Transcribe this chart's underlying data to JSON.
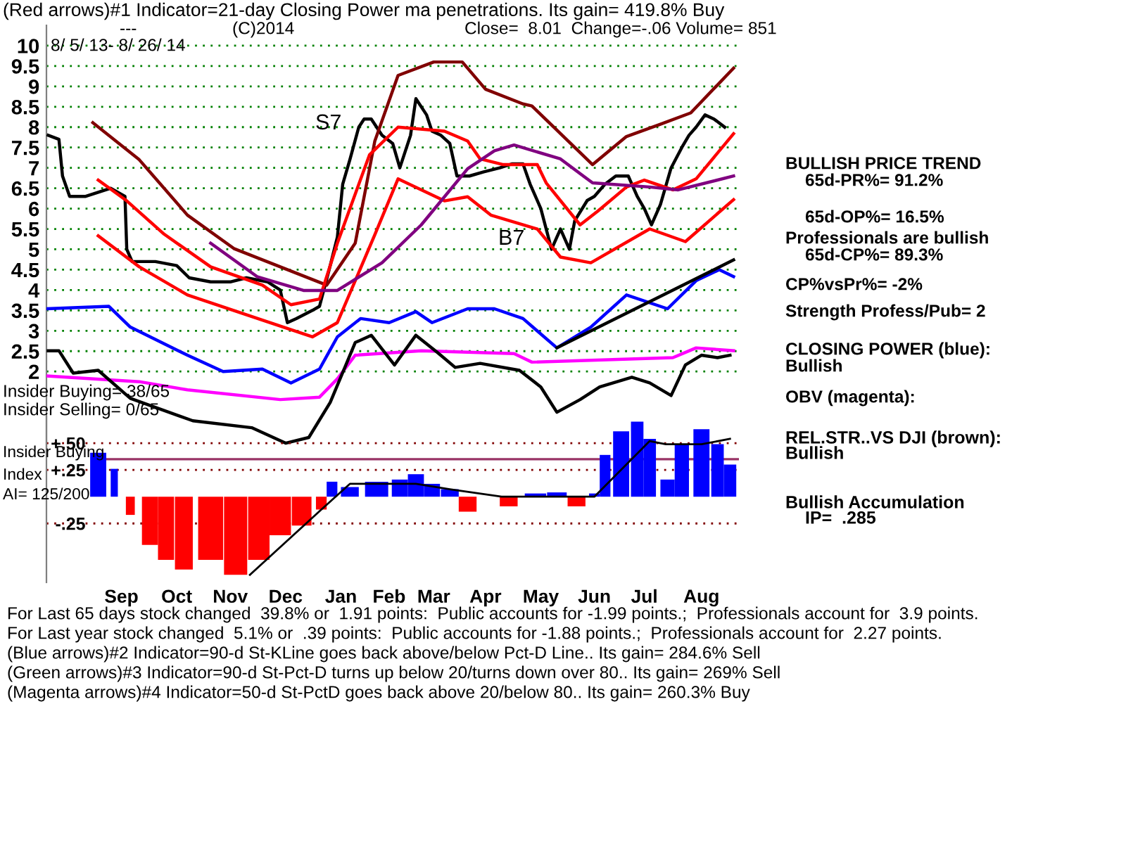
{
  "chart_data": [
    {
      "type": "line",
      "title": "(Red arrows)#1 Indicator=21-day Closing Power ma penetrations. Its gain= 419.8% Buy",
      "xlim": [
        "2013-08-05",
        "2014-08-28"
      ],
      "ylim": [
        0,
        10.5
      ],
      "yticks": [
        2,
        2.5,
        3,
        3.5,
        4,
        4.5,
        5,
        5.5,
        6,
        6.5,
        7,
        7.5,
        8,
        8.5,
        9,
        9.5,
        10
      ],
      "grid": "y",
      "tick_labels": "y",
      "series": [
        {
          "color": "#000000",
          "x": [
            "2013-08-06",
            "2013-08-12",
            "2013-08-14",
            "2013-08-18",
            "2013-08-27",
            "2013-09-03",
            "2013-09-10",
            "2013-09-18",
            "2013-09-19",
            "2013-09-22",
            "2013-10-05",
            "2013-10-17",
            "2013-10-24",
            "2013-11-05",
            "2013-11-16",
            "2013-11-25",
            "2013-12-07",
            "2013-12-14",
            "2013-12-18",
            "2013-12-23",
            "2014-01-01",
            "2014-01-05",
            "2014-01-11",
            "2014-01-15",
            "2014-01-18",
            "2014-01-22",
            "2014-01-27",
            "2014-01-30",
            "2014-02-03",
            "2014-02-09",
            "2014-02-15",
            "2014-02-19",
            "2014-02-25",
            "2014-02-28",
            "2014-03-06",
            "2014-03-09",
            "2014-03-14",
            "2014-03-19",
            "2014-03-23",
            "2014-03-30",
            "2014-04-07",
            "2014-04-16",
            "2014-04-23",
            "2014-04-29",
            "2014-05-03",
            "2014-05-09",
            "2014-05-15",
            "2014-05-20",
            "2014-05-25",
            "2014-05-28",
            "2014-06-04",
            "2014-06-08",
            "2014-06-14",
            "2014-06-20",
            "2014-06-27",
            "2014-07-02",
            "2014-07-06",
            "2014-07-10",
            "2014-07-15",
            "2014-07-21",
            "2014-07-27",
            "2014-07-31",
            "2014-08-04",
            "2014-08-09",
            "2014-08-14",
            "2014-08-20"
          ],
          "values": [
            7.8,
            7.7,
            6.8,
            6.3,
            6.3,
            6.4,
            6.5,
            6.3,
            5.0,
            4.7,
            4.7,
            4.6,
            4.3,
            4.2,
            4.2,
            4.3,
            4.2,
            4.0,
            3.2,
            3.3,
            3.5,
            3.6,
            4.6,
            5.3,
            6.6,
            7.2,
            8.0,
            8.2,
            8.2,
            7.8,
            7.6,
            7.0,
            7.8,
            8.7,
            8.3,
            7.9,
            7.8,
            7.6,
            6.8,
            6.8,
            6.9,
            7.0,
            7.1,
            7.1,
            6.6,
            6.0,
            5.0,
            5.5,
            5.0,
            5.7,
            6.2,
            6.3,
            6.6,
            6.8,
            6.8,
            6.3,
            6.0,
            5.6,
            6.1,
            7.0,
            7.5,
            7.8,
            8.0,
            8.3,
            8.2,
            8.0
          ]
        },
        {
          "color": "#800000",
          "x": [
            "2013-08-31",
            "2013-09-26",
            "2013-10-23",
            "2013-11-18",
            "2013-12-14",
            "2014-01-09",
            "2014-01-25",
            "2014-02-05",
            "2014-02-18",
            "2014-03-10",
            "2014-03-26",
            "2014-04-08",
            "2014-04-29",
            "2014-05-04",
            "2014-06-07",
            "2014-06-26",
            "2014-07-15",
            "2014-08-01",
            "2014-08-25"
          ],
          "values": [
            8.11,
            7.2,
            5.84,
            5.02,
            4.57,
            4.12,
            5.15,
            7.66,
            9.27,
            9.6,
            9.6,
            8.93,
            8.57,
            8.52,
            7.08,
            7.77,
            8.07,
            8.35,
            9.45
          ]
        },
        {
          "color": "#ff0000",
          "x": [
            "2013-09-03",
            "2013-09-19",
            "2013-10-10",
            "2013-11-05",
            "2013-12-04",
            "2013-12-20",
            "2014-01-05",
            "2014-01-15",
            "2014-02-02",
            "2014-02-18",
            "2014-03-16",
            "2014-03-29",
            "2014-04-05",
            "2014-04-18",
            "2014-05-07",
            "2014-05-12",
            "2014-05-31",
            "2014-06-10",
            "2014-06-26",
            "2014-07-06",
            "2014-07-22",
            "2014-08-04",
            "2014-08-25"
          ],
          "values": [
            6.7,
            6.19,
            5.37,
            4.57,
            4.12,
            3.64,
            3.78,
            5.15,
            7.32,
            8.0,
            7.9,
            7.66,
            7.22,
            7.08,
            7.08,
            6.63,
            5.6,
            5.94,
            6.53,
            6.7,
            6.46,
            6.73,
            7.84
          ]
        },
        {
          "color": "#ff0000",
          "x": [
            "2013-09-03",
            "2013-09-26",
            "2013-10-23",
            "2013-12-04",
            "2014-01-01",
            "2014-01-15",
            "2014-02-05",
            "2014-02-18",
            "2014-03-16",
            "2014-03-29",
            "2014-04-11",
            "2014-05-07",
            "2014-05-20",
            "2014-06-06",
            "2014-07-09",
            "2014-07-29",
            "2014-08-25"
          ],
          "values": [
            5.33,
            4.57,
            3.88,
            3.26,
            2.85,
            3.2,
            5.36,
            6.73,
            6.19,
            6.29,
            5.84,
            5.5,
            4.81,
            4.67,
            5.5,
            5.19,
            6.22
          ]
        },
        {
          "color": "#800080",
          "x": [
            "2013-11-05",
            "2013-12-01",
            "2013-12-27",
            "2014-01-15",
            "2014-02-09",
            "2014-03-03",
            "2014-03-29",
            "2014-04-13",
            "2014-04-24",
            "2014-05-20",
            "2014-06-07",
            "2014-07-09",
            "2014-07-25",
            "2014-08-25"
          ],
          "values": [
            5.15,
            4.33,
            3.99,
            3.99,
            4.67,
            5.6,
            6.98,
            7.42,
            7.56,
            7.22,
            6.63,
            6.53,
            6.46,
            6.8
          ]
        },
        {
          "color": "#0000ff",
          "x": [
            "2013-08-05",
            "2013-09-09",
            "2013-09-21",
            "2013-10-23",
            "2013-11-12",
            "2013-12-04",
            "2013-12-20",
            "2014-01-05",
            "2014-01-15",
            "2014-01-28",
            "2014-02-13",
            "2014-02-28",
            "2014-03-09",
            "2014-03-29",
            "2014-04-13",
            "2014-04-29",
            "2014-05-18",
            "2014-06-06",
            "2014-06-26",
            "2014-07-19",
            "2014-08-04",
            "2014-08-17",
            "2014-08-25"
          ],
          "values": [
            3.54,
            3.6,
            3.09,
            2.4,
            2.0,
            2.06,
            1.72,
            2.06,
            2.85,
            3.3,
            3.2,
            3.47,
            3.2,
            3.54,
            3.54,
            3.3,
            2.58,
            3.09,
            3.88,
            3.54,
            4.23,
            4.5,
            4.33
          ]
        },
        {
          "color": "#ff00ff",
          "x": [
            "2013-08-05",
            "2013-09-26",
            "2013-10-23",
            "2013-12-14",
            "2014-01-05",
            "2014-01-15",
            "2014-01-25",
            "2014-03-03",
            "2014-04-24",
            "2014-05-04",
            "2014-07-22",
            "2014-08-04",
            "2014-08-25"
          ],
          "values": [
            1.89,
            1.75,
            1.55,
            1.31,
            1.37,
            1.82,
            2.4,
            2.51,
            2.44,
            2.23,
            2.34,
            2.58,
            2.51
          ]
        },
        {
          "color": "#000000",
          "x": [
            "2013-08-06",
            "2013-08-12",
            "2013-08-20",
            "2013-09-03",
            "2013-09-21",
            "2013-10-26",
            "2013-11-28",
            "2013-12-17",
            "2013-12-30",
            "2014-01-11",
            "2014-01-25",
            "2014-02-03",
            "2014-02-16",
            "2014-02-28",
            "2014-03-12",
            "2014-03-22",
            "2014-04-05",
            "2014-04-27",
            "2014-05-09",
            "2014-05-18",
            "2014-05-31",
            "2014-06-11",
            "2014-06-29",
            "2014-07-09",
            "2014-07-21",
            "2014-07-29",
            "2014-08-07",
            "2014-08-16",
            "2014-08-23"
          ],
          "values": [
            2.51,
            2.51,
            1.96,
            2.03,
            1.34,
            0.79,
            0.62,
            0.24,
            0.38,
            1.24,
            2.71,
            2.89,
            2.16,
            2.89,
            2.47,
            2.1,
            2.2,
            2.03,
            1.62,
            1.0,
            1.31,
            1.62,
            1.86,
            1.72,
            1.41,
            2.16,
            2.4,
            2.34,
            2.4
          ]
        },
        {
          "color": "#000000",
          "x": [
            "2014-05-18",
            "2014-08-25"
          ],
          "values": [
            2.58,
            4.74
          ]
        }
      ],
      "annotations": [
        "---",
        "(C)2014",
        "Close=  8.01  Change=-.06 Volume= 851",
        "8/ 5/ 13- 8/ 26/ 14",
        "BULLISH PRICE TREND",
        "65d-PR%= 91.2%",
        "65d-OP%= 16.5%",
        "Professionals are bullish",
        "65d-CP%= 89.3%",
        "CP%vsPr%= -2%",
        "Strength Profess/Pub= 2",
        "CLOSING POWER (blue):",
        "Bullish",
        "OBV (magenta):",
        "Insider Buying= 38/65",
        "Insider Selling= 0/65",
        "S7",
        "B7"
      ]
    },
    {
      "type": "bar",
      "xlim": [
        "2013-08-05",
        "2014-08-28"
      ],
      "ylim": [
        -0.8,
        0.75
      ],
      "yticks": [
        {
          "value": 0.5,
          "label": "+.50"
        },
        {
          "value": 0.25,
          "label": "+.25"
        },
        {
          "value": -0.25,
          "label": "-.25"
        }
      ],
      "xticks": [
        {
          "value": "2013-09-16",
          "label": "Sep"
        },
        {
          "value": "2013-10-17",
          "label": "Oct"
        },
        {
          "value": "2013-11-16",
          "label": "Nov"
        },
        {
          "value": "2013-12-17",
          "label": "Dec"
        },
        {
          "value": "2014-01-17",
          "label": "Jan"
        },
        {
          "value": "2014-02-13",
          "label": "Feb"
        },
        {
          "value": "2014-03-10",
          "label": "Mar"
        },
        {
          "value": "2014-04-08",
          "label": "Apr"
        },
        {
          "value": "2014-05-09",
          "label": "May"
        },
        {
          "value": "2014-06-08",
          "label": "Jun"
        },
        {
          "value": "2014-07-06",
          "label": "Jul"
        },
        {
          "value": "2014-08-07",
          "label": "Aug"
        }
      ],
      "grid": "y",
      "ref_lines": [
        {
          "axis": "y",
          "value": 0.35,
          "color": "#993366"
        }
      ],
      "series": [
        {
          "type": "bar",
          "x": [
            "2013-09-03",
            "2013-09-12",
            "2013-09-16",
            "2013-09-21",
            "2013-10-02",
            "2013-10-11",
            "2013-10-21",
            "2013-11-05",
            "2013-11-19",
            "2013-12-02",
            "2013-12-14",
            "2013-12-26",
            "2014-01-06",
            "2014-01-12",
            "2014-01-22",
            "2014-02-06",
            "2014-02-19",
            "2014-02-28",
            "2014-03-09",
            "2014-03-19",
            "2014-03-29",
            "2014-04-11",
            "2014-04-21",
            "2014-05-06",
            "2014-05-18",
            "2014-05-29",
            "2014-06-08",
            "2014-06-14",
            "2014-06-23",
            "2014-07-02",
            "2014-07-09",
            "2014-07-19",
            "2014-07-27",
            "2014-08-07",
            "2014-08-16",
            "2014-08-23"
          ],
          "values": [
            0.41,
            0.26,
            0,
            -0.17,
            -0.45,
            -0.59,
            -0.68,
            -0.59,
            -0.73,
            -0.59,
            -0.36,
            -0.27,
            -0.12,
            0.14,
            0.09,
            0.14,
            0.16,
            0.21,
            0.12,
            0.07,
            -0.14,
            0,
            -0.09,
            0.03,
            0.04,
            -0.09,
            0.03,
            0.39,
            0.61,
            0.7,
            0.54,
            0.16,
            0.49,
            0.63,
            0.49,
            0.3
          ],
          "colors": [
            "#0000ff",
            "#0000ff",
            "#0000ff",
            "#ff0000",
            "#ff0000",
            "#ff0000",
            "#ff0000",
            "#ff0000",
            "#ff0000",
            "#ff0000",
            "#ff0000",
            "#ff0000",
            "#ff0000",
            "#0000ff",
            "#0000ff",
            "#0000ff",
            "#0000ff",
            "#0000ff",
            "#0000ff",
            "#0000ff",
            "#ff0000",
            "#0000ff",
            "#ff0000",
            "#0000ff",
            "#0000ff",
            "#ff0000",
            "#0000ff",
            "#0000ff",
            "#0000ff",
            "#0000ff",
            "#0000ff",
            "#0000ff",
            "#0000ff",
            "#0000ff",
            "#0000ff",
            "#0000ff"
          ]
        },
        {
          "type": "line",
          "color": "#000000",
          "x": [
            "2013-11-27",
            "2014-01-06",
            "2014-01-22",
            "2014-02-28",
            "2014-03-19",
            "2014-04-17",
            "2014-05-15",
            "2014-06-08",
            "2014-07-09",
            "2014-07-18",
            "2014-08-07",
            "2014-08-23"
          ],
          "values": [
            -0.73,
            -0.12,
            0.12,
            0.12,
            0.07,
            0.0,
            0.0,
            0.0,
            0.52,
            0.49,
            0.49,
            0.54
          ]
        }
      ],
      "annotations": [
        "REL.STR..VS DJI (brown):",
        "Bullish",
        "Insider Buying",
        "Index",
        "AI= 125/200",
        "Bullish Accumulation",
        "IP=  .285",
        "For Last 65 days stock changed  39.8% or  1.91 points:  Public accounts for -1.99 points.;  Professionals account for  3.9 points.",
        "For Last year stock changed  5.1% or  .39 points:  Public accounts for -1.88 points.;  Professionals account for  2.27 points.",
        "(Blue arrows)#2 Indicator=90-d St-KLine goes back above/below Pct-D Line.. Its gain= 284.6% Sell",
        "(Green arrows)#3 Indicator=90-d St-Pct-D turns up below 20/turns down over 80.. Its gain= 269% Sell",
        "(Magenta arrows)#4 Indicator=50-d St-PctD goes back above 20/below 80.. Its gain= 260.3% Buy"
      ]
    }
  ]
}
